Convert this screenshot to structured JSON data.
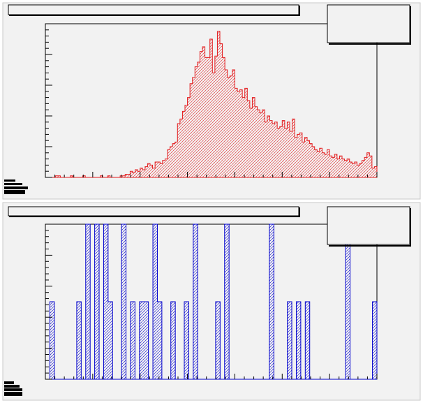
{
  "colors": {
    "pad_background": "#f2f2f2",
    "frame": "#000000",
    "top_histogram": "#e31a1c",
    "bottom_histogram": "#0000cc"
  },
  "chart_data": [
    {
      "type": "bar",
      "title": "",
      "xlabel": "",
      "ylabel": "",
      "fill_pattern": "hatched",
      "legend": "top-right",
      "values": [
        0,
        0,
        0,
        0,
        1,
        1,
        0,
        0,
        0,
        0,
        1,
        0,
        0,
        0,
        0,
        1,
        0,
        0,
        0,
        0,
        0,
        0,
        1,
        0,
        0,
        1,
        0,
        0,
        0,
        0,
        1,
        1,
        2,
        2,
        4,
        3,
        5,
        4,
        6,
        5,
        7,
        9,
        8,
        6,
        10,
        10,
        9,
        11,
        12,
        18,
        20,
        22,
        23,
        35,
        38,
        43,
        47,
        52,
        61,
        65,
        72,
        75,
        82,
        85,
        78,
        78,
        90,
        68,
        79,
        95,
        87,
        78,
        70,
        65,
        66,
        70,
        58,
        56,
        57,
        52,
        58,
        50,
        45,
        52,
        46,
        44,
        42,
        44,
        36,
        40,
        37,
        35,
        36,
        32,
        33,
        37,
        32,
        36,
        30,
        38,
        26,
        28,
        29,
        23,
        26,
        24,
        22,
        20,
        18,
        17,
        19,
        16,
        15,
        18,
        14,
        13,
        15,
        12,
        14,
        12,
        11,
        12,
        10,
        9,
        10,
        8,
        9,
        11,
        13,
        16,
        14,
        6,
        7
      ],
      "ylim": [
        0,
        100
      ]
    },
    {
      "type": "bar",
      "title": "",
      "xlabel": "",
      "ylabel": "",
      "fill_pattern": "hatched",
      "legend": "top-right",
      "values": [
        0,
        1,
        0,
        0,
        0,
        0,
        0,
        1,
        0,
        2,
        0,
        2,
        0,
        2,
        1,
        0,
        0,
        2,
        0,
        1,
        0,
        1,
        1,
        0,
        2,
        1,
        0,
        0,
        1,
        0,
        0,
        1,
        0,
        2,
        0,
        0,
        0,
        0,
        1,
        0,
        2,
        0,
        0,
        0,
        0,
        0,
        0,
        0,
        0,
        0,
        2,
        0,
        0,
        0,
        1,
        0,
        1,
        0,
        1,
        0,
        0,
        0,
        0,
        0,
        0,
        0,
        0,
        2,
        0,
        0,
        0,
        0,
        0,
        1
      ],
      "ylim": [
        0,
        2
      ]
    }
  ]
}
